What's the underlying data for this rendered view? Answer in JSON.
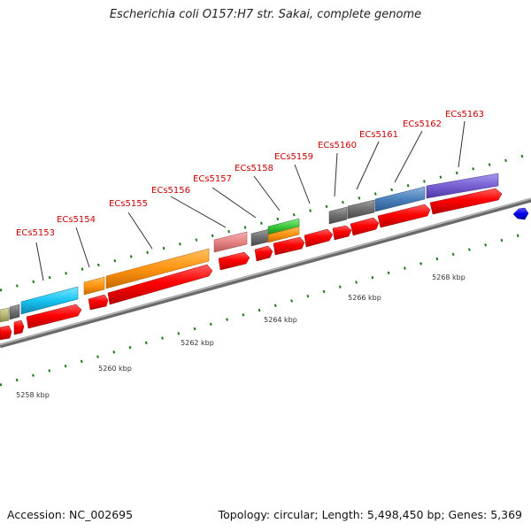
{
  "title": "Escherichia coli O157:H7 str. Sakai, complete genome",
  "accession_text": "Accession: NC_002695",
  "summary_text": "Topology: circular; Length: 5,498,450 bp; Genes: 5,369",
  "colors": {
    "cds_forward": "#ff0000",
    "backbone": "#888888",
    "tick": "#1a7a1a",
    "label": "#cc0000"
  },
  "gene_labels": [
    "ECs5153",
    "ECs5154",
    "ECs5155",
    "ECs5156",
    "ECs5157",
    "ECs5158",
    "ECs5159",
    "ECs5160",
    "ECs5161",
    "ECs5162",
    "ECs5163"
  ],
  "kbp_labels": [
    "5258 kbp",
    "5260 kbp",
    "5262 kbp",
    "5264 kbp",
    "5266 kbp",
    "5268 kbp"
  ]
}
